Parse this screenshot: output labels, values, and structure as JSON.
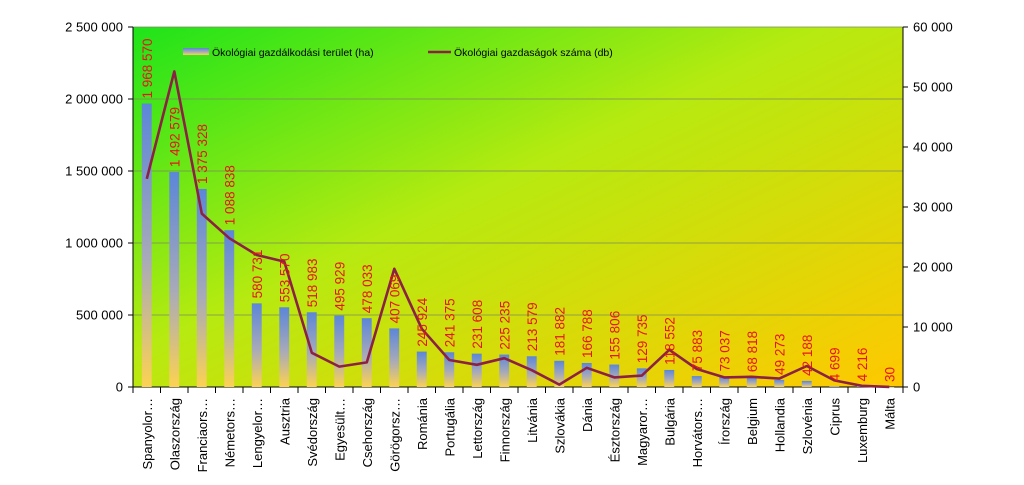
{
  "chart_data": {
    "type": "bar",
    "categories": [
      "Spanyolor…",
      "Olaszország",
      "Franciaors…",
      "Németors…",
      "Lengyelor…",
      "Ausztria",
      "Svédország",
      "Egyesült…",
      "Csehország",
      "Görögorsz…",
      "Románia",
      "Portugália",
      "Lettország",
      "Finnország",
      "Litvánia",
      "Szlovákia",
      "Dánia",
      "Észtország",
      "Magyaror…",
      "Bulgária",
      "Horvátors…",
      "Írország",
      "Belgium",
      "Hollandia",
      "Szlovénia",
      "Ciprus",
      "Luxemburg",
      "Málta"
    ],
    "series": [
      {
        "name": "Ökológiai gazdálkodási terület (ha)",
        "type": "bar",
        "axis": "left",
        "values": [
          1968570,
          1492579,
          1375328,
          1088838,
          580731,
          553570,
          518983,
          495929,
          478033,
          407069,
          245924,
          241375,
          231608,
          225235,
          213579,
          181882,
          166788,
          155806,
          129735,
          118552,
          75883,
          73037,
          68818,
          49273,
          42188,
          4699,
          4216,
          30
        ],
        "labels": [
          "1 968 570",
          "1 492 579",
          "1 375 328",
          "1 088 838",
          "580 731",
          "553 570",
          "518 983",
          "495 929",
          "478 033",
          "407 069",
          "245 924",
          "241 375",
          "231 608",
          "225 235",
          "213 579",
          "181 882",
          "166 788",
          "155 806",
          "129 735",
          "118 552",
          "75 883",
          "73 037",
          "68 818",
          "49 273",
          "42 188",
          "4 699",
          "4 216",
          "30"
        ]
      },
      {
        "name": "Ökológiai gazdaságok száma (db)",
        "type": "line",
        "axis": "right",
        "values": [
          34700,
          52600,
          28900,
          24800,
          22000,
          20900,
          5700,
          3400,
          4100,
          19700,
          9700,
          4500,
          3700,
          4800,
          2800,
          400,
          3200,
          1600,
          1900,
          6200,
          3000,
          1600,
          1700,
          1400,
          3500,
          1100,
          200,
          20
        ]
      }
    ],
    "y_left": {
      "min": 0,
      "max": 2500000,
      "ticks": [
        "0",
        "500 000",
        "1 000 000",
        "1 500 000",
        "2 000 000",
        "2 500 000"
      ],
      "tick_values": [
        0,
        500000,
        1000000,
        1500000,
        2000000,
        2500000
      ]
    },
    "y_right": {
      "min": 0,
      "max": 60000,
      "ticks": [
        "0",
        "10 000",
        "20 000",
        "30 000",
        "40 000",
        "50 000",
        "60 000"
      ],
      "tick_values": [
        0,
        10000,
        20000,
        30000,
        40000,
        50000,
        60000
      ]
    },
    "grid": true,
    "legend_position": "top",
    "colors": {
      "bar": "#6f8fd0",
      "line": "#8b2243",
      "labels": "#e8141b"
    }
  }
}
